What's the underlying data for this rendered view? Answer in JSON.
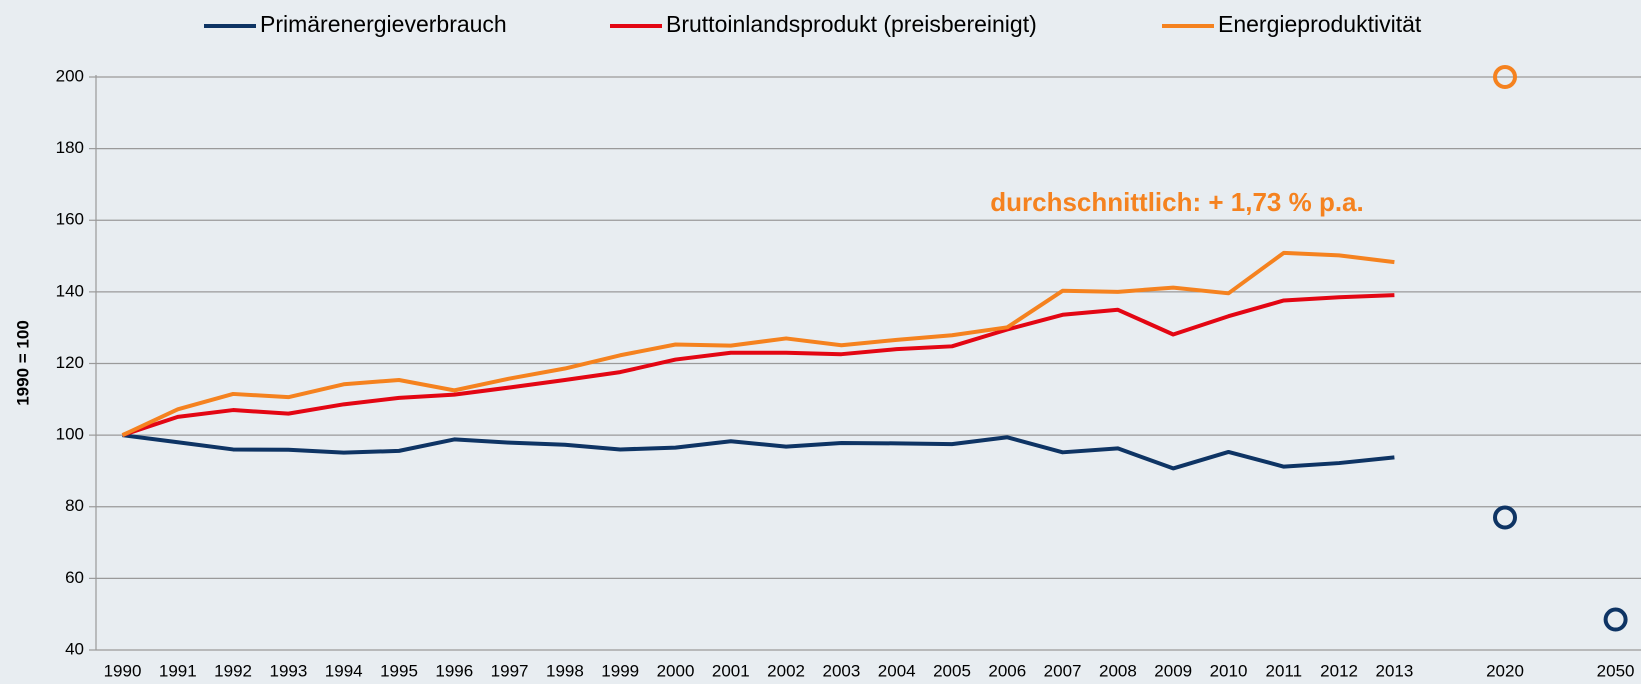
{
  "chart_data": {
    "type": "line",
    "categories": [
      "1990",
      "1991",
      "1992",
      "1993",
      "1994",
      "1995",
      "1996",
      "1997",
      "1998",
      "1999",
      "2000",
      "2001",
      "2002",
      "2003",
      "2004",
      "2005",
      "2006",
      "2007",
      "2008",
      "2009",
      "2010",
      "2011",
      "2012",
      "2013",
      null,
      "2020",
      null,
      "2050"
    ],
    "series": [
      {
        "name": "Primärenergieverbrauch",
        "color": "#0e3464",
        "values": [
          100,
          98,
          96,
          95.9,
          95.1,
          95.6,
          98.8,
          97.9,
          97.3,
          96,
          96.5,
          98.3,
          96.8,
          97.8,
          97.7,
          97.5,
          99.4,
          95.2,
          96.3,
          90.7,
          95.3,
          91.2,
          92.2,
          93.8,
          null,
          77,
          null,
          48.5
        ]
      },
      {
        "name": "Bruttoinlandsprodukt (preisbereinigt)",
        "color": "#e30613",
        "values": [
          100,
          105.1,
          107,
          106,
          108.6,
          110.4,
          111.3,
          113.3,
          115.4,
          117.6,
          121.1,
          123,
          123,
          122.6,
          124,
          124.8,
          129.5,
          133.6,
          135,
          128.1,
          133.2,
          137.6,
          138.5,
          139.1,
          null,
          null,
          null,
          null
        ]
      },
      {
        "name": "Energieproduktivität",
        "color": "#f5821f",
        "values": [
          100,
          107.2,
          111.5,
          110.6,
          114.2,
          115.4,
          112.5,
          115.8,
          118.6,
          122.3,
          125.3,
          125,
          127,
          125.1,
          126.6,
          127.9,
          130.1,
          140.3,
          140,
          141.2,
          139.6,
          150.9,
          150.2,
          148.3,
          null,
          200,
          null,
          null
        ]
      }
    ],
    "ylabel": "1990 = 100",
    "annotation": "durchschnittlich: + 1,73 % p.a.",
    "ylim": [
      40,
      200
    ],
    "yticks": [
      40,
      60,
      80,
      100,
      120,
      140,
      160,
      180,
      200
    ],
    "grid": true,
    "legend": "top"
  }
}
